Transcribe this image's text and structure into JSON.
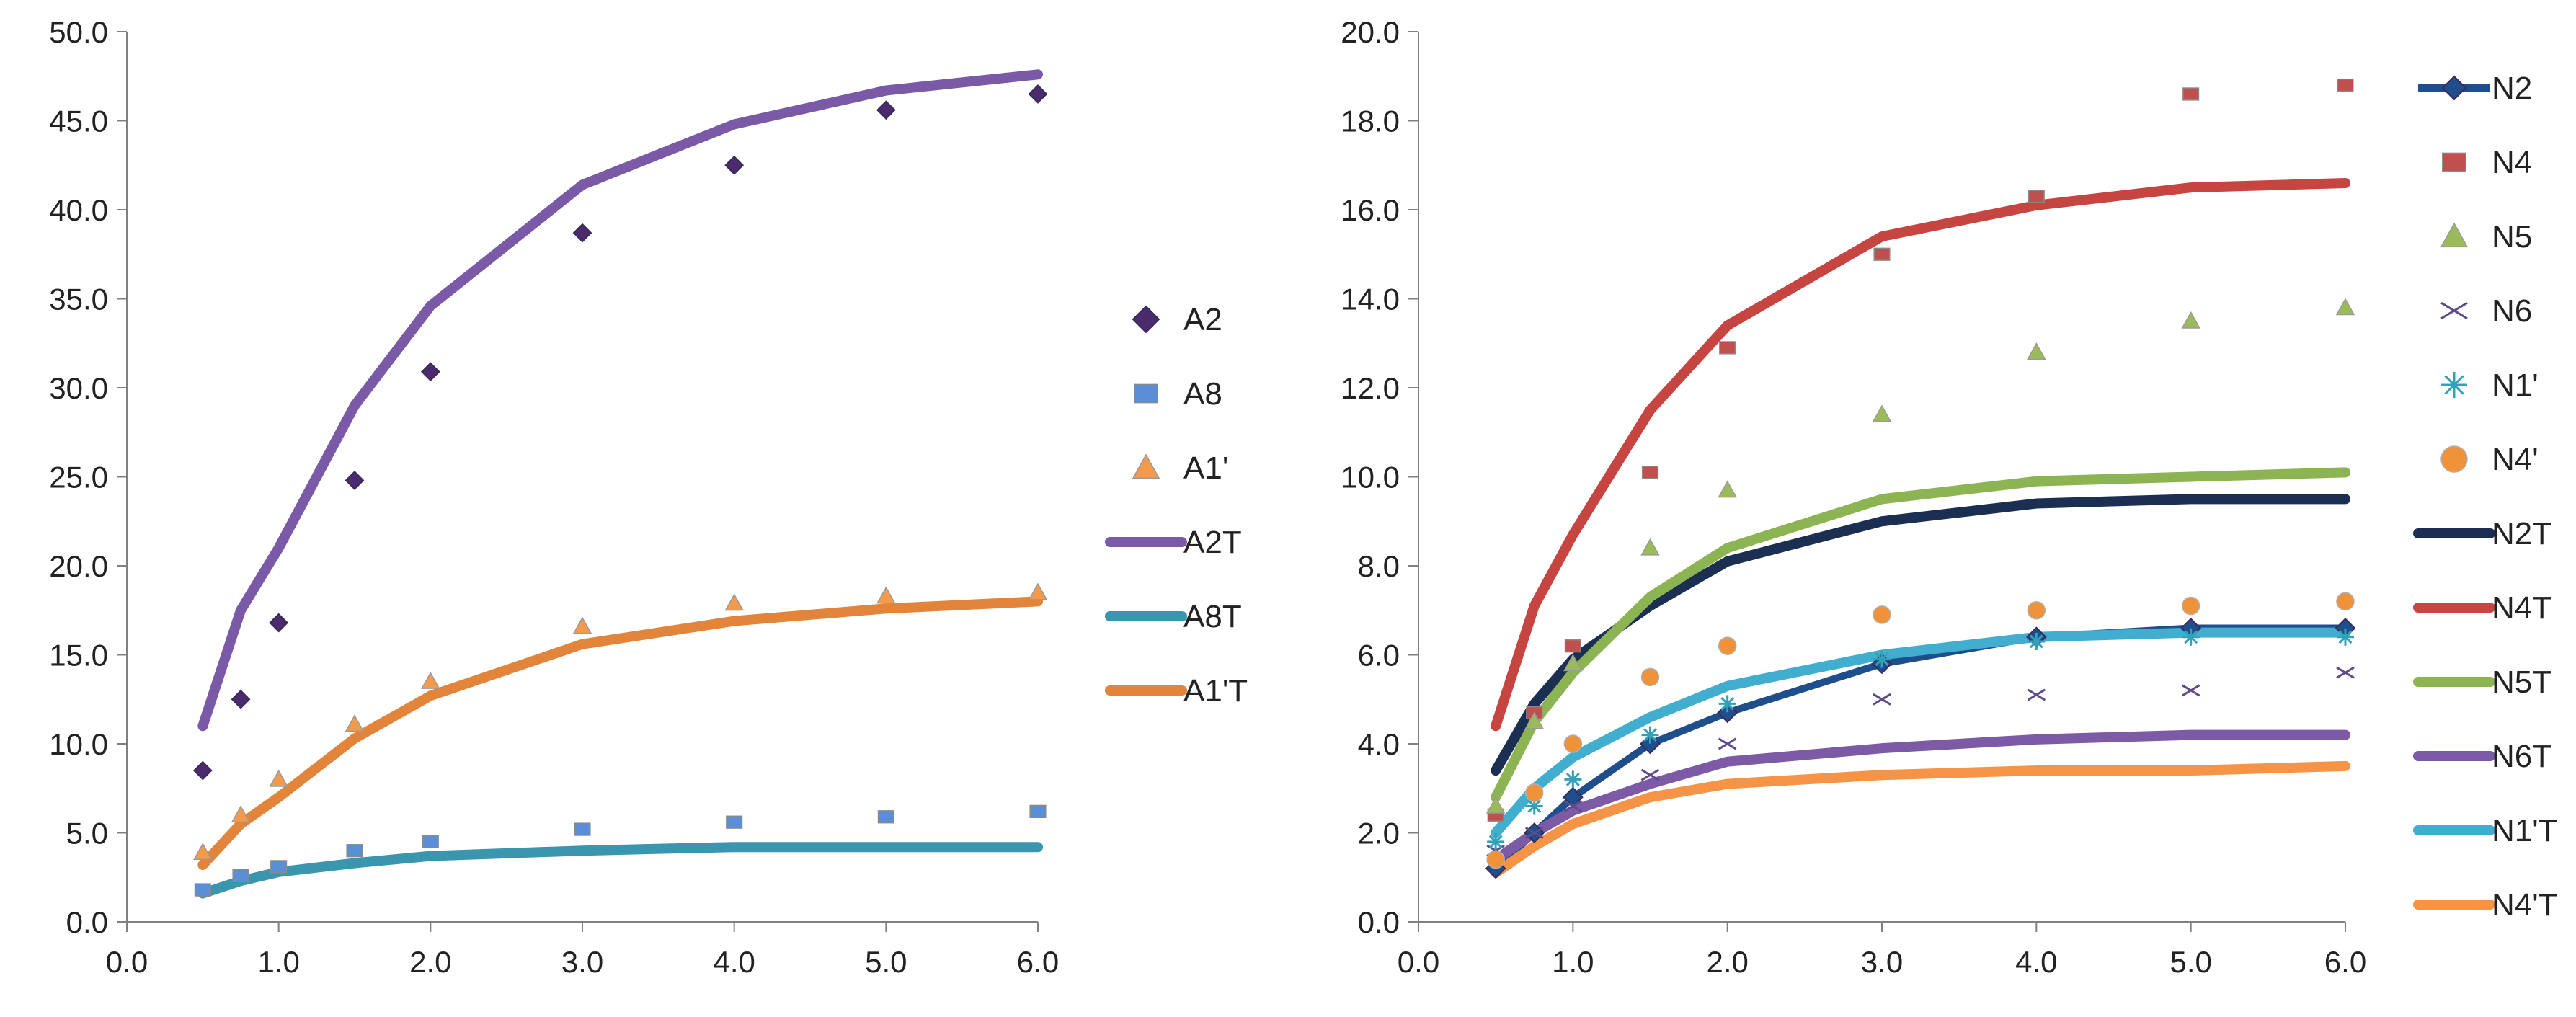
{
  "chart_data": [
    {
      "type": "scatter",
      "title": "",
      "xlabel": "",
      "ylabel": "",
      "xlim": [
        0,
        6
      ],
      "ylim": [
        0,
        50
      ],
      "x_ticks": [
        "0.0",
        "1.0",
        "2.0",
        "3.0",
        "4.0",
        "5.0",
        "6.0"
      ],
      "y_ticks": [
        "0.0",
        "5.0",
        "10.0",
        "15.0",
        "20.0",
        "25.0",
        "30.0",
        "35.0",
        "40.0",
        "45.0",
        "50.0"
      ],
      "grid": false,
      "legend_position": "right",
      "series": [
        {
          "name": "A2",
          "kind": "marker",
          "marker": "diamond",
          "color": "#4B2A6E",
          "x": [
            0.5,
            0.75,
            1.0,
            1.5,
            2.0,
            3.0,
            4.0,
            5.0,
            6.0
          ],
          "y": [
            8.5,
            12.5,
            16.8,
            24.8,
            30.9,
            38.7,
            42.5,
            45.6,
            46.5
          ]
        },
        {
          "name": "A8",
          "kind": "marker",
          "marker": "square",
          "color": "#5A8FD8",
          "x": [
            0.5,
            0.75,
            1.0,
            1.5,
            2.0,
            3.0,
            4.0,
            5.0,
            6.0
          ],
          "y": [
            1.8,
            2.6,
            3.1,
            4.0,
            4.5,
            5.2,
            5.6,
            5.9,
            6.2
          ]
        },
        {
          "name": "A1'",
          "kind": "marker",
          "marker": "triangle",
          "color": "#F39A4C",
          "x": [
            0.5,
            0.75,
            1.0,
            1.5,
            2.0,
            3.0,
            4.0,
            5.0,
            6.0
          ],
          "y": [
            3.9,
            6.0,
            8.0,
            11.1,
            13.5,
            16.6,
            17.9,
            18.3,
            18.5
          ]
        },
        {
          "name": "A2T",
          "kind": "line",
          "color": "#7A5AA6",
          "x": [
            0.5,
            0.75,
            1.0,
            1.5,
            2.0,
            3.0,
            4.0,
            5.0,
            6.0
          ],
          "y": [
            11.0,
            17.5,
            21.0,
            29.0,
            34.6,
            41.4,
            44.8,
            46.7,
            47.6
          ]
        },
        {
          "name": "A8T",
          "kind": "line",
          "color": "#3A95AE",
          "x": [
            0.5,
            0.75,
            1.0,
            1.5,
            2.0,
            3.0,
            4.0,
            5.0,
            6.0
          ],
          "y": [
            1.6,
            2.3,
            2.8,
            3.3,
            3.7,
            4.0,
            4.2,
            4.2,
            4.2
          ]
        },
        {
          "name": "A1'T",
          "kind": "line",
          "color": "#E2843A",
          "x": [
            0.5,
            0.75,
            1.0,
            1.5,
            2.0,
            3.0,
            4.0,
            5.0,
            6.0
          ],
          "y": [
            3.2,
            5.5,
            7.0,
            10.3,
            12.7,
            15.6,
            16.9,
            17.6,
            18.0
          ]
        }
      ]
    },
    {
      "type": "scatter",
      "title": "",
      "xlabel": "",
      "ylabel": "",
      "xlim": [
        0,
        6
      ],
      "ylim": [
        0,
        20
      ],
      "x_ticks": [
        "0.0",
        "1.0",
        "2.0",
        "3.0",
        "4.0",
        "5.0",
        "6.0"
      ],
      "y_ticks": [
        "0.0",
        "2.0",
        "4.0",
        "6.0",
        "8.0",
        "10.0",
        "12.0",
        "14.0",
        "16.0",
        "18.0",
        "20.0"
      ],
      "grid": false,
      "legend_position": "right",
      "series": [
        {
          "name": "N2",
          "kind": "marker-line",
          "marker": "diamond",
          "color": "#1F4E8C",
          "x": [
            0.5,
            0.75,
            1.0,
            1.5,
            2.0,
            3.0,
            4.0,
            5.0,
            6.0
          ],
          "y": [
            1.2,
            2.0,
            2.8,
            4.0,
            4.7,
            5.8,
            6.4,
            6.6,
            6.6
          ]
        },
        {
          "name": "N4",
          "kind": "marker",
          "marker": "square",
          "color": "#C0504D",
          "x": [
            0.5,
            0.75,
            1.0,
            1.5,
            2.0,
            3.0,
            4.0,
            5.0,
            6.0
          ],
          "y": [
            2.4,
            4.7,
            6.2,
            10.1,
            12.9,
            15.0,
            16.3,
            18.6,
            18.8
          ]
        },
        {
          "name": "N5",
          "kind": "marker",
          "marker": "triangle",
          "color": "#9BBB59",
          "x": [
            0.5,
            0.75,
            1.0,
            1.5,
            2.0,
            3.0,
            4.0,
            5.0,
            6.0
          ],
          "y": [
            2.6,
            4.5,
            5.8,
            8.4,
            9.7,
            11.4,
            12.8,
            13.5,
            13.8
          ]
        },
        {
          "name": "N6",
          "kind": "marker",
          "marker": "x",
          "color": "#5E4B8A",
          "x": [
            0.5,
            0.75,
            1.0,
            1.5,
            2.0,
            3.0,
            4.0,
            5.0,
            6.0
          ],
          "y": [
            1.6,
            2.0,
            2.6,
            3.3,
            4.0,
            5.0,
            5.1,
            5.2,
            5.6
          ]
        },
        {
          "name": "N1'",
          "kind": "marker",
          "marker": "star",
          "color": "#31A0B8",
          "x": [
            0.5,
            0.75,
            1.0,
            1.5,
            2.0,
            3.0,
            4.0,
            5.0,
            6.0
          ],
          "y": [
            1.8,
            2.6,
            3.2,
            4.2,
            4.9,
            5.9,
            6.3,
            6.4,
            6.4
          ]
        },
        {
          "name": "N4'",
          "kind": "marker",
          "marker": "circle",
          "color": "#F0923A",
          "x": [
            0.5,
            0.75,
            1.0,
            1.5,
            2.0,
            3.0,
            4.0,
            5.0,
            6.0
          ],
          "y": [
            1.4,
            2.9,
            4.0,
            5.5,
            6.2,
            6.9,
            7.0,
            7.1,
            7.2
          ]
        },
        {
          "name": "N2T",
          "kind": "line",
          "color": "#1B2F52",
          "x": [
            0.5,
            0.75,
            1.0,
            1.5,
            2.0,
            3.0,
            4.0,
            5.0,
            6.0
          ],
          "y": [
            3.4,
            4.9,
            5.9,
            7.1,
            8.1,
            9.0,
            9.4,
            9.5,
            9.5
          ]
        },
        {
          "name": "N4T",
          "kind": "line",
          "color": "#C64541",
          "x": [
            0.5,
            0.75,
            1.0,
            1.5,
            2.0,
            3.0,
            4.0,
            5.0,
            6.0
          ],
          "y": [
            4.4,
            7.1,
            8.7,
            11.5,
            13.4,
            15.4,
            16.1,
            16.5,
            16.6
          ]
        },
        {
          "name": "N5T",
          "kind": "line",
          "color": "#8DB453",
          "x": [
            0.5,
            0.75,
            1.0,
            1.5,
            2.0,
            3.0,
            4.0,
            5.0,
            6.0
          ],
          "y": [
            2.8,
            4.5,
            5.6,
            7.3,
            8.4,
            9.5,
            9.9,
            10.0,
            10.1
          ]
        },
        {
          "name": "N6T",
          "kind": "line",
          "color": "#7C5AA6",
          "x": [
            0.5,
            0.75,
            1.0,
            1.5,
            2.0,
            3.0,
            4.0,
            5.0,
            6.0
          ],
          "y": [
            1.4,
            2.0,
            2.5,
            3.1,
            3.6,
            3.9,
            4.1,
            4.2,
            4.2
          ]
        },
        {
          "name": "N1'T",
          "kind": "line",
          "color": "#41AECF",
          "x": [
            0.5,
            0.75,
            1.0,
            1.5,
            2.0,
            3.0,
            4.0,
            5.0,
            6.0
          ],
          "y": [
            2.0,
            3.0,
            3.7,
            4.6,
            5.3,
            6.0,
            6.4,
            6.5,
            6.5
          ]
        },
        {
          "name": "N4'T",
          "kind": "line",
          "color": "#F59446",
          "x": [
            0.5,
            0.75,
            1.0,
            1.5,
            2.0,
            3.0,
            4.0,
            5.0,
            6.0
          ],
          "y": [
            1.1,
            1.7,
            2.2,
            2.8,
            3.1,
            3.3,
            3.4,
            3.4,
            3.5
          ]
        }
      ]
    }
  ]
}
